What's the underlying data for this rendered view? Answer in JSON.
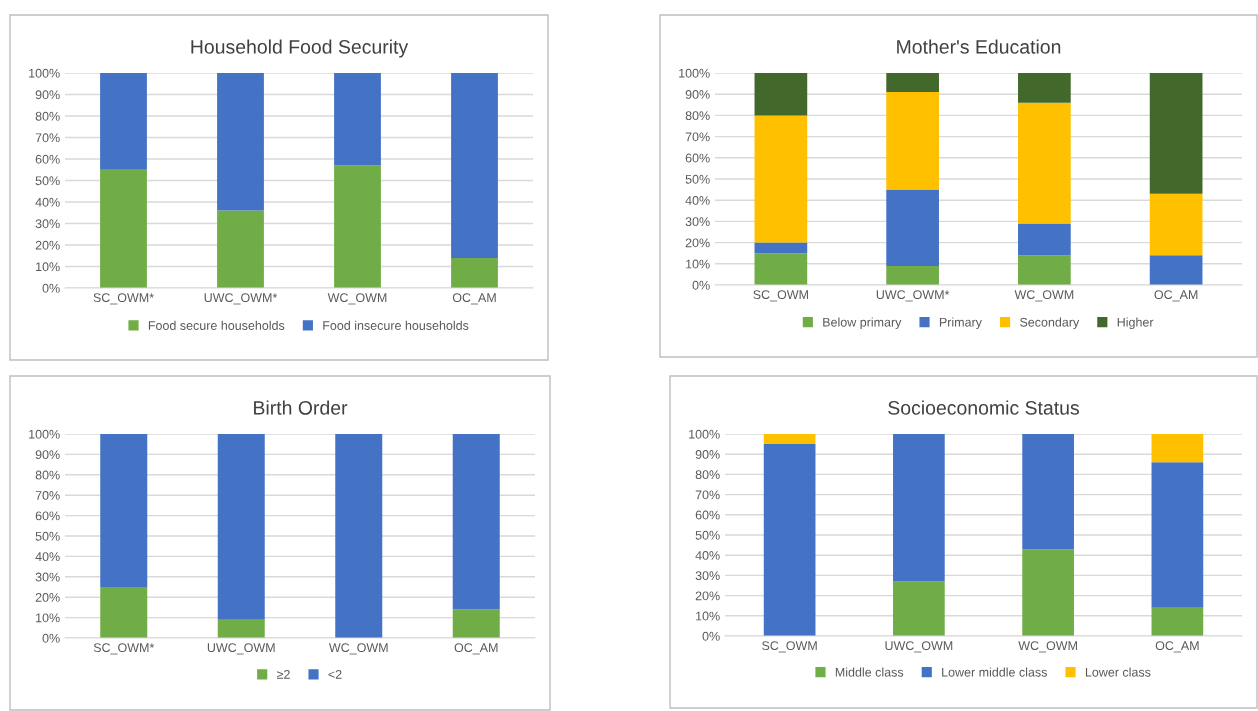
{
  "chart_data": [
    {
      "type": "bar",
      "title": "Household Food Security",
      "stacked": true,
      "categories": [
        "SC_OWM*",
        "UWC_OWM*",
        "WC_OWM",
        "OC_AM"
      ],
      "series": [
        {
          "name": "Food secure households",
          "color": "#70ad47",
          "values": [
            55,
            36,
            57,
            14
          ]
        },
        {
          "name": "Food insecure households",
          "color": "#4472c4",
          "values": [
            45,
            64,
            43,
            86
          ]
        }
      ],
      "ylim": [
        0,
        100
      ],
      "yticks": [
        {
          "value": 0,
          "label": "0%"
        },
        {
          "value": 10,
          "label": "10%"
        },
        {
          "value": 20,
          "label": "20%"
        },
        {
          "value": 30,
          "label": "30%"
        },
        {
          "value": 40,
          "label": "40%"
        },
        {
          "value": 50,
          "label": "50%"
        },
        {
          "value": 60,
          "label": "60%"
        },
        {
          "value": 70,
          "label": "70%"
        },
        {
          "value": 80,
          "label": "80%"
        },
        {
          "value": 90,
          "label": "90%"
        },
        {
          "value": 100,
          "label": "100%"
        }
      ],
      "grid": "y",
      "legend": "bottom"
    },
    {
      "type": "bar",
      "title": "Mother's Education",
      "stacked": true,
      "categories": [
        "SC_OWM",
        "UWC_OWM*",
        "WC_OWM",
        "OC_AM"
      ],
      "series": [
        {
          "name": "Below primary",
          "color": "#70ad47",
          "values": [
            15,
            9,
            14,
            0
          ]
        },
        {
          "name": "Primary",
          "color": "#4472c4",
          "values": [
            5,
            36,
            15,
            14
          ]
        },
        {
          "name": "Secondary",
          "color": "#ffc000",
          "values": [
            60,
            46,
            57,
            29
          ]
        },
        {
          "name": "Higher",
          "color": "#43682b",
          "values": [
            20,
            9,
            14,
            57
          ]
        }
      ],
      "ylim": [
        0,
        100
      ],
      "yticks": [
        {
          "value": 0,
          "label": "0%"
        },
        {
          "value": 10,
          "label": "10%"
        },
        {
          "value": 20,
          "label": "20%"
        },
        {
          "value": 30,
          "label": "30%"
        },
        {
          "value": 40,
          "label": "40%"
        },
        {
          "value": 50,
          "label": "50%"
        },
        {
          "value": 60,
          "label": "60%"
        },
        {
          "value": 70,
          "label": "70%"
        },
        {
          "value": 80,
          "label": "80%"
        },
        {
          "value": 90,
          "label": "90%"
        },
        {
          "value": 100,
          "label": "100%"
        }
      ],
      "grid": "y",
      "legend": "bottom"
    },
    {
      "type": "bar",
      "title": "Birth Order",
      "stacked": true,
      "categories": [
        "SC_OWM*",
        "UWC_OWM",
        "WC_OWM",
        "OC_AM"
      ],
      "series": [
        {
          "name": "≥2",
          "color": "#70ad47",
          "values": [
            25,
            9,
            0,
            14
          ]
        },
        {
          "name": "<2",
          "color": "#4472c4",
          "values": [
            75,
            91,
            100,
            86
          ]
        }
      ],
      "ylim": [
        0,
        100
      ],
      "yticks": [
        {
          "value": 0,
          "label": "0%"
        },
        {
          "value": 10,
          "label": "10%"
        },
        {
          "value": 20,
          "label": "20%"
        },
        {
          "value": 30,
          "label": "30%"
        },
        {
          "value": 40,
          "label": "40%"
        },
        {
          "value": 50,
          "label": "50%"
        },
        {
          "value": 60,
          "label": "60%"
        },
        {
          "value": 70,
          "label": "70%"
        },
        {
          "value": 80,
          "label": "80%"
        },
        {
          "value": 90,
          "label": "90%"
        },
        {
          "value": 100,
          "label": "100%"
        }
      ],
      "grid": "y",
      "legend": "bottom"
    },
    {
      "type": "bar",
      "title": "Socioeconomic Status",
      "stacked": true,
      "categories": [
        "SC_OWM",
        "UWC_OWM",
        "WC_OWM",
        "OC_AM"
      ],
      "series": [
        {
          "name": "Middle class",
          "color": "#70ad47",
          "values": [
            0,
            27,
            43,
            14
          ]
        },
        {
          "name": "Lower middle class",
          "color": "#4472c4",
          "values": [
            95,
            73,
            57,
            72
          ]
        },
        {
          "name": "Lower class",
          "color": "#ffc000",
          "values": [
            5,
            0,
            0,
            14
          ]
        }
      ],
      "ylim": [
        0,
        100
      ],
      "yticks": [
        {
          "value": 0,
          "label": "0%"
        },
        {
          "value": 10,
          "label": "10%"
        },
        {
          "value": 20,
          "label": "20%"
        },
        {
          "value": 30,
          "label": "30%"
        },
        {
          "value": 40,
          "label": "40%"
        },
        {
          "value": 50,
          "label": "50%"
        },
        {
          "value": 60,
          "label": "60%"
        },
        {
          "value": 70,
          "label": "70%"
        },
        {
          "value": 80,
          "label": "80%"
        },
        {
          "value": 90,
          "label": "90%"
        },
        {
          "value": 100,
          "label": "100%"
        }
      ],
      "grid": "y",
      "legend": "bottom"
    }
  ]
}
